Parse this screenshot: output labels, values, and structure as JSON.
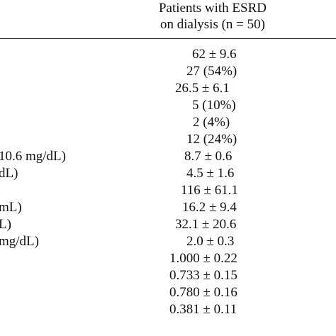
{
  "header": {
    "line1": "Patients with ESRD",
    "line2": "on dialysis (n = 50)"
  },
  "rows": [
    {
      "label": "",
      "value": "62 ± 9.6"
    },
    {
      "label": "",
      "value": "27 (54%)"
    },
    {
      "label": "",
      "value": "26.5 ± 6.1"
    },
    {
      "label": "",
      "value": "5 (10%)"
    },
    {
      "label": "",
      "value": "2 (4%)"
    },
    {
      "label": "",
      "value": "12 (24%)"
    },
    {
      "label": "10.6 mg/dL)",
      "value": "8.7 ± 0.6"
    },
    {
      "label": "dL)",
      "value": "4.5 ± 1.6"
    },
    {
      "label": "",
      "value": "116 ± 61.1"
    },
    {
      "label": "mL)",
      "value": "16.2 ± 9.4"
    },
    {
      "label": "L)",
      "value": "32.1 ± 20.6"
    },
    {
      "label": "mg/dL)",
      "value": "2.0 ± 0.3"
    },
    {
      "label": "",
      "value": "1.000 ± 0.22"
    },
    {
      "label": "",
      "value": "0.733 ± 0.15"
    },
    {
      "label": "",
      "value": "0.780 ± 0.16"
    },
    {
      "label": "",
      "value": "0.381 ± 0.11"
    }
  ]
}
